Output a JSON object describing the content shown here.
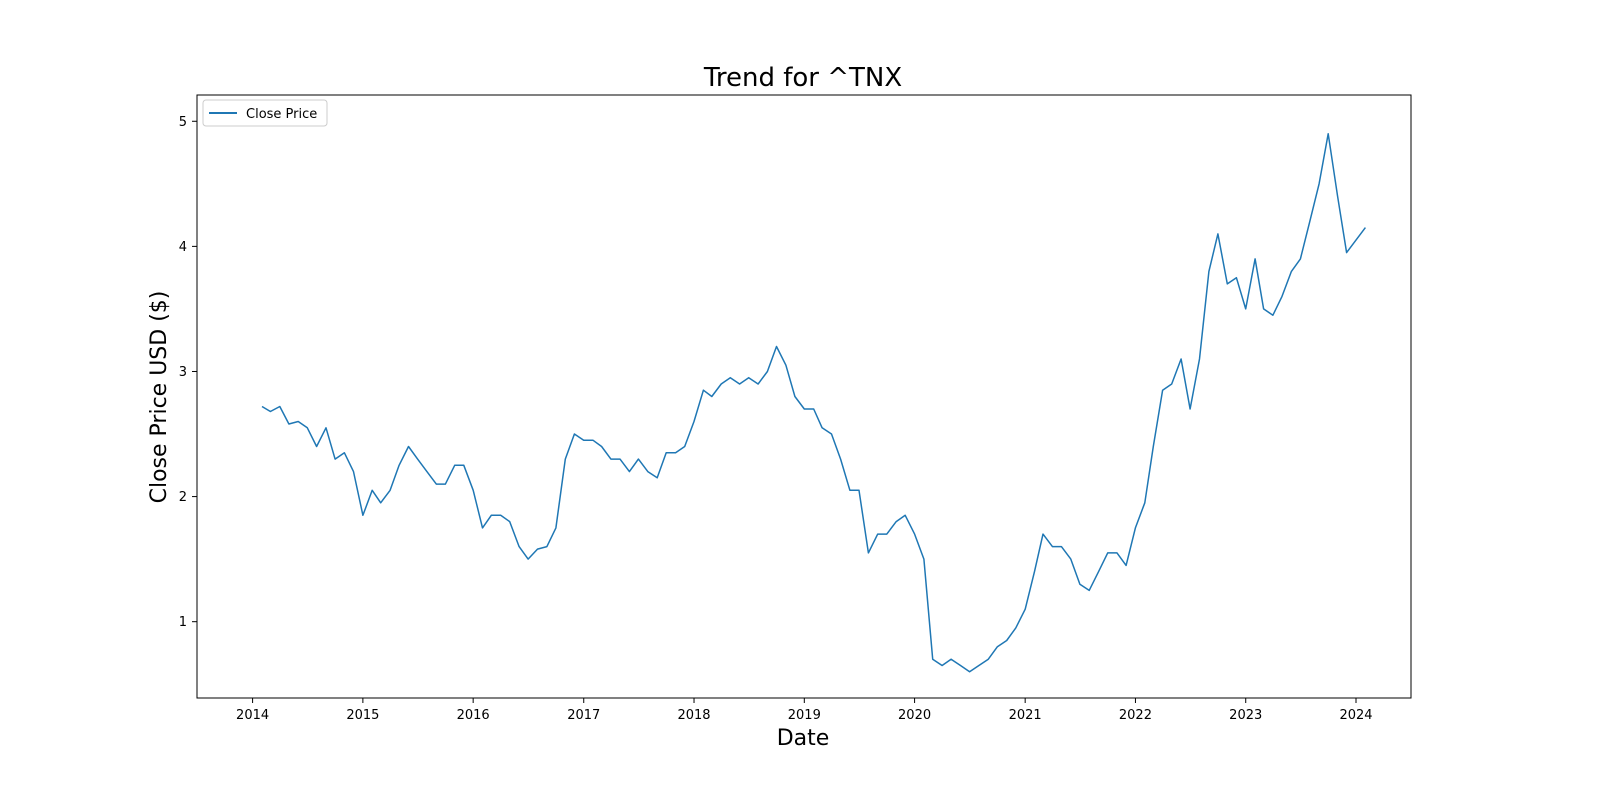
{
  "chart_data": {
    "type": "line",
    "title": "Trend for ^TNX",
    "xlabel": "Date",
    "ylabel": "Close Price USD ($)",
    "x_ticks": [
      "2014",
      "2015",
      "2016",
      "2017",
      "2018",
      "2019",
      "2020",
      "2021",
      "2022",
      "2023",
      "2024"
    ],
    "y_ticks": [
      "1",
      "2",
      "3",
      "4",
      "5"
    ],
    "xlim": [
      "2013-07-01",
      "2024-07-01"
    ],
    "ylim": [
      0.39,
      5.21
    ],
    "grid": false,
    "legend_position": "top-left",
    "series": [
      {
        "name": "Close Price",
        "color": "#1f77b4",
        "x": [
          "2014-02-01",
          "2014-03-01",
          "2014-04-01",
          "2014-05-01",
          "2014-06-01",
          "2014-07-01",
          "2014-08-01",
          "2014-09-01",
          "2014-10-01",
          "2014-11-01",
          "2014-12-01",
          "2015-01-01",
          "2015-02-01",
          "2015-03-01",
          "2015-04-01",
          "2015-05-01",
          "2015-06-01",
          "2015-07-01",
          "2015-08-01",
          "2015-09-01",
          "2015-10-01",
          "2015-11-01",
          "2015-12-01",
          "2016-01-01",
          "2016-02-01",
          "2016-03-01",
          "2016-04-01",
          "2016-05-01",
          "2016-06-01",
          "2016-07-01",
          "2016-08-01",
          "2016-09-01",
          "2016-10-01",
          "2016-11-01",
          "2016-12-01",
          "2017-01-01",
          "2017-02-01",
          "2017-03-01",
          "2017-04-01",
          "2017-05-01",
          "2017-06-01",
          "2017-07-01",
          "2017-08-01",
          "2017-09-01",
          "2017-10-01",
          "2017-11-01",
          "2017-12-01",
          "2018-01-01",
          "2018-02-01",
          "2018-03-01",
          "2018-04-01",
          "2018-05-01",
          "2018-06-01",
          "2018-07-01",
          "2018-08-01",
          "2018-09-01",
          "2018-10-01",
          "2018-11-01",
          "2018-12-01",
          "2019-01-01",
          "2019-02-01",
          "2019-03-01",
          "2019-04-01",
          "2019-05-01",
          "2019-06-01",
          "2019-07-01",
          "2019-08-01",
          "2019-09-01",
          "2019-10-01",
          "2019-11-01",
          "2019-12-01",
          "2020-01-01",
          "2020-02-01",
          "2020-03-01",
          "2020-04-01",
          "2020-05-01",
          "2020-06-01",
          "2020-07-01",
          "2020-08-01",
          "2020-09-01",
          "2020-10-01",
          "2020-11-01",
          "2020-12-01",
          "2021-01-01",
          "2021-02-01",
          "2021-03-01",
          "2021-04-01",
          "2021-05-01",
          "2021-06-01",
          "2021-07-01",
          "2021-08-01",
          "2021-09-01",
          "2021-10-01",
          "2021-11-01",
          "2021-12-01",
          "2022-01-01",
          "2022-02-01",
          "2022-03-01",
          "2022-04-01",
          "2022-05-01",
          "2022-06-01",
          "2022-07-01",
          "2022-08-01",
          "2022-09-01",
          "2022-10-01",
          "2022-11-01",
          "2022-12-01",
          "2023-01-01",
          "2023-02-01",
          "2023-03-01",
          "2023-04-01",
          "2023-05-01",
          "2023-06-01",
          "2023-07-01",
          "2023-08-01",
          "2023-09-01",
          "2023-10-01",
          "2023-11-01",
          "2023-12-01",
          "2024-01-01",
          "2024-02-01"
        ],
        "y": [
          2.72,
          2.68,
          2.72,
          2.58,
          2.6,
          2.55,
          2.4,
          2.55,
          2.3,
          2.35,
          2.2,
          1.85,
          2.05,
          1.95,
          2.05,
          2.25,
          2.4,
          2.3,
          2.2,
          2.1,
          2.1,
          2.25,
          2.25,
          2.05,
          1.75,
          1.85,
          1.85,
          1.8,
          1.6,
          1.5,
          1.58,
          1.6,
          1.75,
          2.3,
          2.5,
          2.45,
          2.45,
          2.4,
          2.3,
          2.3,
          2.2,
          2.3,
          2.2,
          2.15,
          2.35,
          2.35,
          2.4,
          2.6,
          2.85,
          2.8,
          2.9,
          2.95,
          2.9,
          2.95,
          2.9,
          3.0,
          3.2,
          3.05,
          2.8,
          2.7,
          2.7,
          2.55,
          2.5,
          2.3,
          2.05,
          2.05,
          1.55,
          1.7,
          1.7,
          1.8,
          1.85,
          1.7,
          1.5,
          0.7,
          0.65,
          0.7,
          0.65,
          0.6,
          0.65,
          0.7,
          0.8,
          0.85,
          0.95,
          1.1,
          1.4,
          1.7,
          1.6,
          1.6,
          1.5,
          1.3,
          1.25,
          1.4,
          1.55,
          1.55,
          1.45,
          1.75,
          1.95,
          2.4,
          2.85,
          2.9,
          3.1,
          2.7,
          3.1,
          3.8,
          4.1,
          3.7,
          3.75,
          3.5,
          3.9,
          3.5,
          3.45,
          3.6,
          3.8,
          3.9,
          4.2,
          4.5,
          4.9,
          4.4,
          3.95,
          4.05,
          4.15
        ]
      }
    ]
  }
}
